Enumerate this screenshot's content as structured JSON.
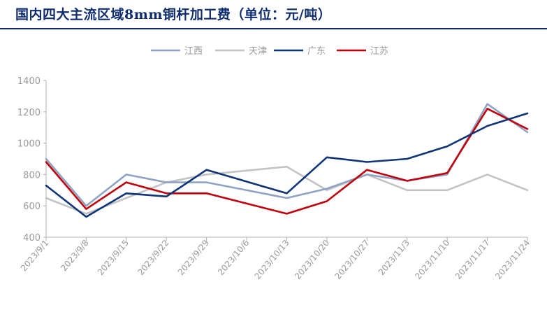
{
  "title": "国内四大主流区域8mm铜杆加工费（单位：元/吨）",
  "colors": {
    "title": "#0f2d6e",
    "axis": "#b0b0b0",
    "tick_text": "#9a9a9a"
  },
  "chart_data": {
    "type": "line",
    "title": "国内四大主流区域8mm铜杆加工费（单位：元/吨）",
    "xlabel": "",
    "ylabel": "",
    "ylim": [
      400,
      1400
    ],
    "yticks": [
      400,
      600,
      800,
      1000,
      1200,
      1400
    ],
    "grid": false,
    "legend_position": "top",
    "categories": [
      "2023/9/1",
      "2023/9/8",
      "2023/9/15",
      "2023/9/22",
      "2023/9/29",
      "2023/10/6",
      "2023/10/13",
      "2023/10/20",
      "2023/10/27",
      "2023/11/3",
      "2023/11/10",
      "2023/11/17",
      "2023/11/24"
    ],
    "series": [
      {
        "name": "江西",
        "color": "#8ea3c4",
        "values": [
          900,
          600,
          800,
          750,
          750,
          null,
          650,
          710,
          800,
          760,
          800,
          1250,
          1070
        ]
      },
      {
        "name": "天津",
        "color": "#c3c3c3",
        "values": [
          650,
          550,
          650,
          750,
          800,
          null,
          850,
          700,
          800,
          700,
          700,
          800,
          700
        ]
      },
      {
        "name": "广东",
        "color": "#0f3578",
        "values": [
          730,
          530,
          680,
          660,
          830,
          null,
          680,
          910,
          880,
          900,
          980,
          1110,
          1190
        ]
      },
      {
        "name": "江苏",
        "color": "#c0000b",
        "values": [
          880,
          580,
          750,
          680,
          680,
          null,
          550,
          630,
          830,
          760,
          810,
          1220,
          1090
        ]
      }
    ]
  }
}
